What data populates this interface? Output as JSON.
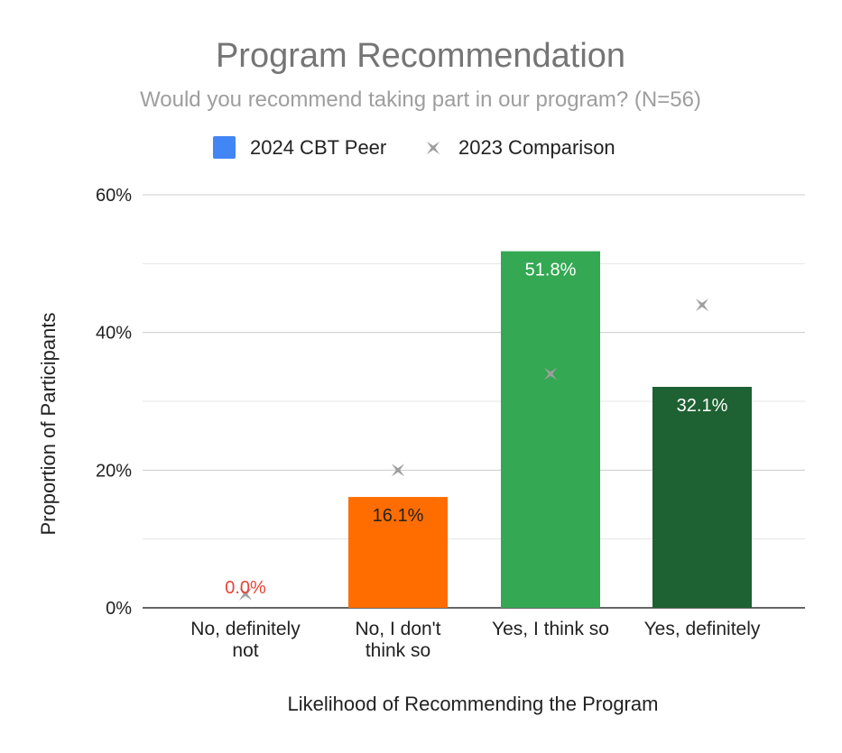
{
  "chart_data": {
    "type": "bar",
    "title": "Program Recommendation",
    "subtitle": "Would you recommend taking part in our program? (N=56)",
    "xlabel": "Likelihood of Recommending the Program",
    "ylabel": "Proportion of Participants",
    "ylim": [
      0,
      60
    ],
    "y_ticks": [
      "0%",
      "20%",
      "40%",
      "60%"
    ],
    "y_tick_values": [
      0,
      20,
      40,
      60
    ],
    "minor_grid_values": [
      10,
      30,
      50
    ],
    "grid": true,
    "legend_position": "top-center",
    "categories": [
      [
        "No, definitely",
        "not"
      ],
      [
        "No, I don't",
        "think so"
      ],
      [
        "Yes, I think so"
      ],
      [
        "Yes, definitely"
      ]
    ],
    "series": [
      {
        "name": "2024 CBT Peer",
        "type": "bar",
        "legend_color": "#4285f4",
        "values": [
          0.0,
          16.1,
          51.8,
          32.1
        ],
        "labels": [
          "0.0%",
          "16.1%",
          "51.8%",
          "32.1%"
        ],
        "colors": [
          "#ea4335",
          "#ff6d01",
          "#34a853",
          "#1e6132"
        ],
        "label_colors": [
          "#ea4335",
          "#222222",
          "#ffffff",
          "#ffffff"
        ]
      },
      {
        "name": "2023 Comparison",
        "type": "marker",
        "marker": "x-star",
        "color": "#9e9e9e",
        "values": [
          2,
          20,
          34,
          44
        ]
      }
    ]
  }
}
